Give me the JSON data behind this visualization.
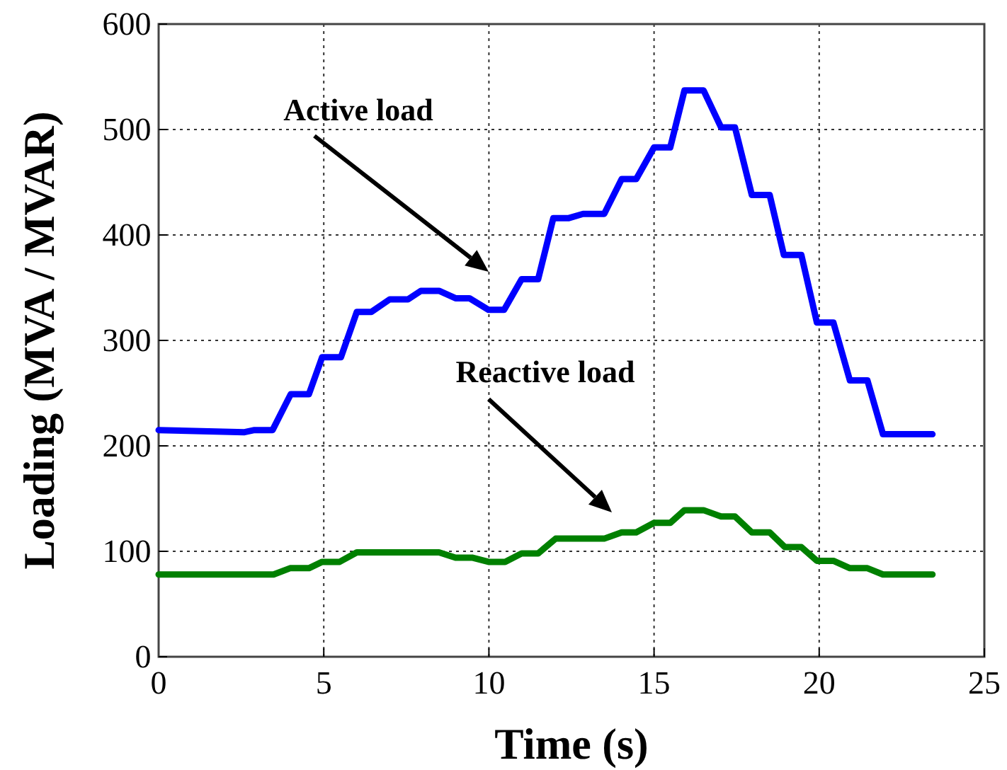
{
  "chart_data": {
    "type": "line",
    "xlabel": "Time (s)",
    "ylabel": "Loading (MVA / MVAR)",
    "xlim": [
      0,
      25
    ],
    "xticks": [
      0,
      5,
      10,
      15,
      20,
      25
    ],
    "ylim": [
      0,
      600
    ],
    "yticks": [
      0,
      100,
      200,
      300,
      400,
      500,
      600
    ],
    "grid": true,
    "line_style": "solid",
    "marker": "none",
    "series": [
      {
        "color": "#0000ff",
        "x": [
          0,
          2.6,
          2.9,
          3.45,
          4.0,
          4.55,
          4.95,
          5.52,
          6.0,
          6.44,
          7.0,
          7.55,
          7.94,
          8.49,
          8.99,
          9.41,
          9.99,
          10.46,
          10.99,
          11.49,
          11.95,
          12.42,
          12.85,
          13.49,
          14.02,
          14.46,
          15.0,
          15.49,
          15.92,
          16.5,
          17.03,
          17.45,
          17.96,
          18.5,
          18.93,
          19.46,
          19.93,
          20.43,
          20.93,
          21.46,
          21.93,
          23.43
        ],
        "values": [
          215,
          213,
          215,
          215,
          249,
          249,
          284,
          284,
          327,
          327,
          339,
          339,
          347,
          347,
          340,
          340,
          329,
          329,
          358,
          358,
          416,
          416,
          420,
          420,
          453,
          453,
          483,
          483,
          537,
          537,
          502,
          502,
          438,
          438,
          381,
          381,
          317,
          317,
          262,
          262,
          211,
          211
        ]
      },
      {
        "color": "#008000",
        "x": [
          0,
          3.48,
          3.98,
          4.55,
          4.95,
          5.48,
          6.0,
          8.49,
          8.99,
          9.49,
          9.99,
          10.49,
          10.99,
          11.49,
          12.02,
          13.49,
          14.02,
          14.46,
          15.0,
          15.49,
          15.92,
          16.5,
          17.03,
          17.45,
          17.96,
          18.5,
          18.96,
          19.46,
          19.93,
          20.43,
          20.93,
          21.46,
          21.93,
          23.43
        ],
        "values": [
          78,
          78,
          84,
          84,
          90,
          90,
          99,
          99,
          94,
          94,
          90,
          90,
          98,
          98,
          112,
          112,
          118,
          118,
          127,
          127,
          139,
          139,
          133,
          133,
          118,
          118,
          104,
          104,
          91,
          91,
          84,
          84,
          78,
          78
        ]
      }
    ],
    "annotations": [
      "Active load",
      "Reactive load"
    ]
  }
}
